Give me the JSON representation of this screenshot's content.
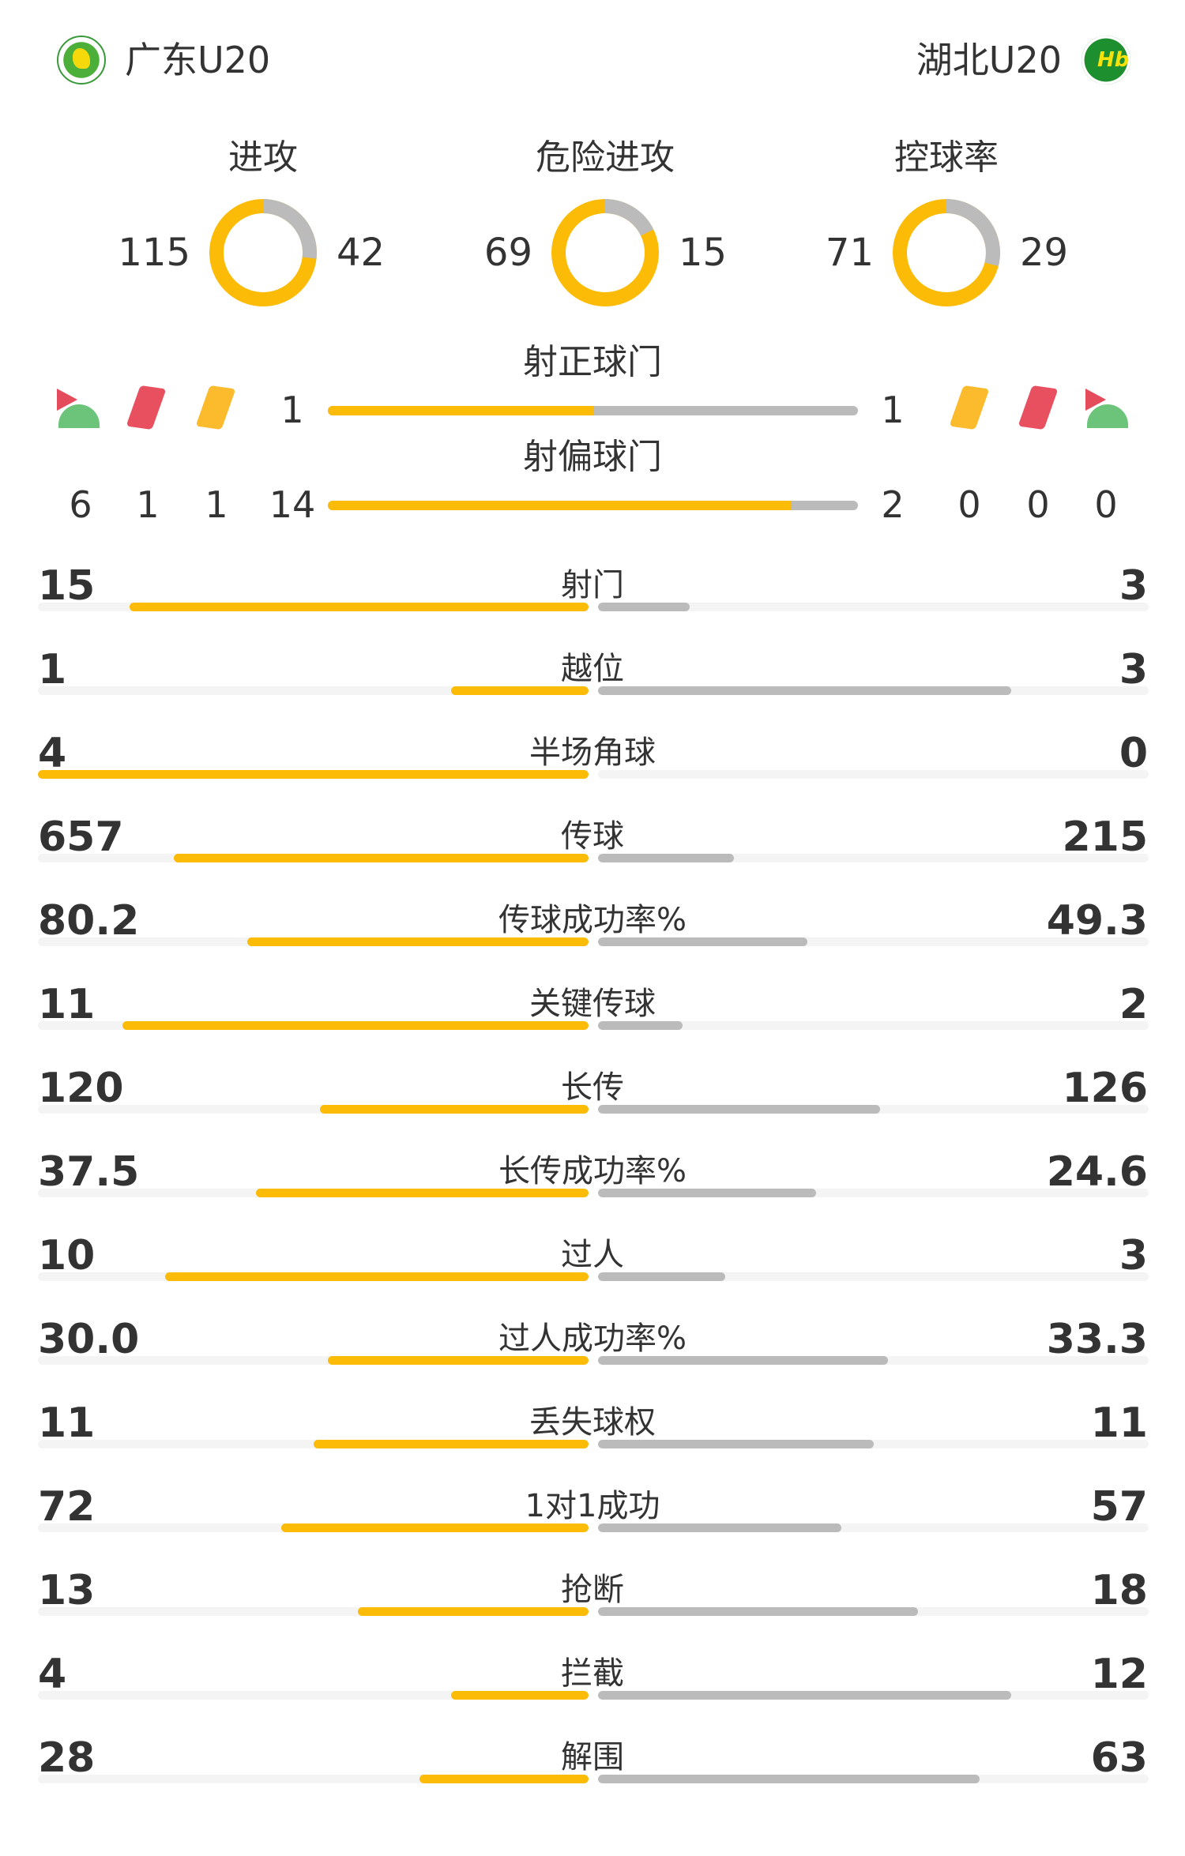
{
  "home": {
    "name": "广东U20",
    "logo": "guangdong-badge",
    "color": "#fbbb06"
  },
  "away": {
    "name": "湖北U20",
    "logo": "hubei-badge",
    "color": "#bbbbbb"
  },
  "donuts": [
    {
      "label": "进攻",
      "home": 115,
      "away": 42
    },
    {
      "label": "危险进攻",
      "home": 69,
      "away": 15
    },
    {
      "label": "控球率",
      "home": 71,
      "away": 29
    }
  ],
  "shots_on": {
    "label": "射正球门",
    "home": 1,
    "away": 1
  },
  "shots_off": {
    "label": "射偏球门",
    "home": 14,
    "away": 2
  },
  "events": {
    "icons": [
      "corner-flag-icon",
      "red-card-icon",
      "yellow-card-icon"
    ],
    "home": {
      "corners": 6,
      "red": 1,
      "yellow": 1
    },
    "away": {
      "corners": 0,
      "red": 0,
      "yellow": 0
    }
  },
  "stats": [
    {
      "label": "射门",
      "home": "15",
      "away": "3"
    },
    {
      "label": "越位",
      "home": "1",
      "away": "3"
    },
    {
      "label": "半场角球",
      "home": "4",
      "away": "0"
    },
    {
      "label": "传球",
      "home": "657",
      "away": "215"
    },
    {
      "label": "传球成功率%",
      "home": "80.2",
      "away": "49.3"
    },
    {
      "label": "关键传球",
      "home": "11",
      "away": "2"
    },
    {
      "label": "长传",
      "home": "120",
      "away": "126"
    },
    {
      "label": "长传成功率%",
      "home": "37.5",
      "away": "24.6"
    },
    {
      "label": "过人",
      "home": "10",
      "away": "3"
    },
    {
      "label": "过人成功率%",
      "home": "30.0",
      "away": "33.3"
    },
    {
      "label": "丢失球权",
      "home": "11",
      "away": "11"
    },
    {
      "label": "1对1成功",
      "home": "72",
      "away": "57"
    },
    {
      "label": "抢断",
      "home": "13",
      "away": "18"
    },
    {
      "label": "拦截",
      "home": "4",
      "away": "12"
    },
    {
      "label": "解围",
      "home": "28",
      "away": "63"
    }
  ]
}
